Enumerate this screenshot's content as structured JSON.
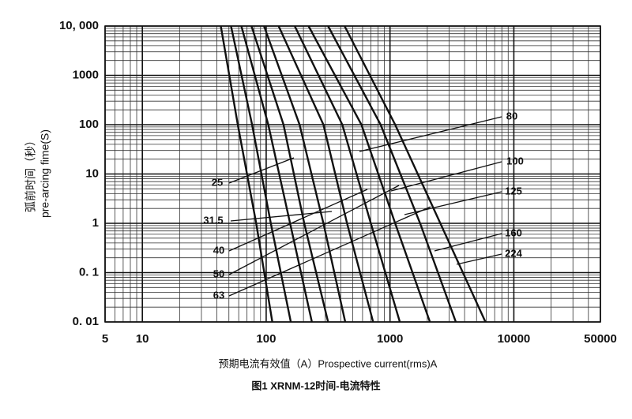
{
  "chart_data": {
    "type": "line",
    "x_label": "预期电流有效值（A）Prospective current(rms)A",
    "y_label_cn": "弧前时间（秒）",
    "y_label": "pre-arcing fime(S)",
    "caption": "图1 XRNM-12时间-电流特性",
    "xscale": "log",
    "yscale": "log",
    "grid": true,
    "color": "#111111",
    "xlim": [
      5,
      50000
    ],
    "xticks": [
      5,
      10,
      100,
      1000,
      10000,
      50000
    ],
    "ylim": [
      0.01,
      10000
    ],
    "yticks": [
      {
        "value": 0.01,
        "label": "0. 01"
      },
      {
        "value": 0.1,
        "label": "0. 1"
      },
      1,
      10,
      100,
      1000,
      {
        "value": 10000,
        "label": "10, 000"
      }
    ],
    "series": [
      {
        "name": "25",
        "x": [
          43,
          59,
          83,
          112
        ],
        "values": [
          10000,
          100,
          1,
          0.01
        ]
      },
      {
        "name": "31.5",
        "x": [
          52,
          77,
          109,
          158
        ],
        "values": [
          10000,
          100,
          1,
          0.01
        ]
      },
      {
        "name": "40",
        "x": [
          63,
          104,
          156,
          234
        ],
        "values": [
          10000,
          100,
          1,
          0.01
        ]
      },
      {
        "name": "50",
        "x": [
          76,
          138,
          203,
          316
        ],
        "values": [
          10000,
          100,
          1,
          0.01
        ]
      },
      {
        "name": "63",
        "x": [
          96,
          186,
          290,
          435
        ],
        "values": [
          10000,
          100,
          1,
          0.01
        ]
      },
      {
        "name": "80",
        "x": [
          126,
          290,
          450,
          730
        ],
        "values": [
          10000,
          100,
          1,
          0.01
        ]
      },
      {
        "name": "100",
        "x": [
          170,
          412,
          700,
          1200
        ],
        "values": [
          10000,
          100,
          1,
          0.01
        ]
      },
      {
        "name": "125",
        "x": [
          220,
          588,
          1100,
          2100
        ],
        "values": [
          10000,
          100,
          1,
          0.01
        ]
      },
      {
        "name": "160",
        "x": [
          316,
          840,
          1750,
          3400
        ],
        "values": [
          10000,
          100,
          1,
          0.01
        ]
      },
      {
        "name": "224",
        "x": [
          430,
          1100,
          2550,
          5900
        ],
        "values": [
          10000,
          100,
          1,
          0.01
        ]
      }
    ]
  }
}
